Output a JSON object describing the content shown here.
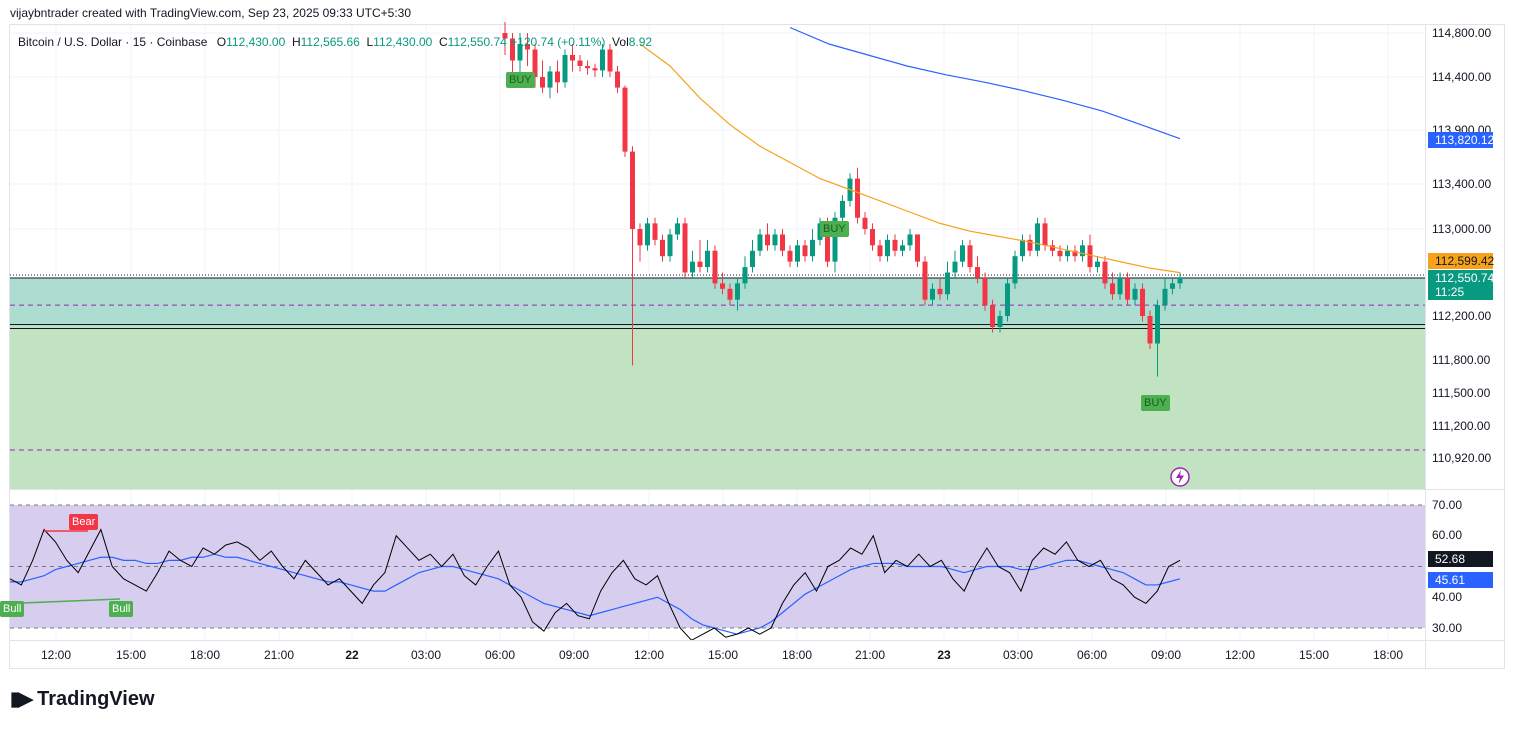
{
  "caption": "vijaybntrader created with TradingView.com, Sep 23, 2025 09:33 UTC+5:30",
  "legend": {
    "symbol": "Bitcoin / U.S. Dollar · 15 · Coinbase",
    "o_label": "O",
    "o": "112,430.00",
    "h_label": "H",
    "h": "112,565.66",
    "l_label": "L",
    "l": "112,430.00",
    "c_label": "C",
    "c": "112,550.74",
    "change": "+120.74 (+0.11%)",
    "vol_label": "Vol",
    "vol": "8.92"
  },
  "colors": {
    "up": "#089981",
    "down": "#f23645",
    "ma_fast": "#f7a21b",
    "ma_slow": "#2962ff",
    "zone_top": "#9fd6c8",
    "zone_bottom": "#bfe2bf",
    "rsi_band": "#d7cdef",
    "rsi_line": "#000000",
    "rsi_ma": "#2962ff"
  },
  "chart_data": [
    {
      "type": "candlestick",
      "price_axis_ticks": [
        "114,800.00",
        "114,400.00",
        "113,900.00",
        "113,400.00",
        "113,000.00",
        "112,200.00",
        "111,800.00",
        "111,500.00",
        "111,200.00",
        "110,920.00"
      ],
      "time_axis_ticks": [
        "12:00",
        "15:00",
        "18:00",
        "21:00",
        "22",
        "03:00",
        "06:00",
        "09:00",
        "12:00",
        "15:00",
        "18:00",
        "21:00",
        "23",
        "03:00",
        "06:00",
        "09:00",
        "12:00",
        "15:00",
        "18:00"
      ],
      "badges": {
        "ma_slow": "113,820.12",
        "ma_fast": "112,599.42",
        "last_price": "112,550.74",
        "countdown": "11:25"
      },
      "signals": [
        "BUY",
        "BUY",
        "BUY"
      ],
      "zone": {
        "top": 112550,
        "mid": 112105,
        "bottom": 110800
      },
      "dashed_levels": [
        112300,
        110990
      ],
      "candles": [
        [
          114800,
          114750,
          114900,
          114600
        ],
        [
          114750,
          114550,
          114800,
          114400
        ],
        [
          114550,
          114700,
          114800,
          114350
        ],
        [
          114700,
          114650,
          114800,
          114500
        ],
        [
          114650,
          114400,
          114700,
          114300
        ],
        [
          114400,
          114300,
          114550,
          114250
        ],
        [
          114300,
          114450,
          114500,
          114200
        ],
        [
          114450,
          114350,
          114550,
          114250
        ],
        [
          114350,
          114600,
          114650,
          114300
        ],
        [
          114600,
          114550,
          114700,
          114450
        ],
        [
          114550,
          114500,
          114600,
          114450
        ],
        [
          114500,
          114480,
          114550,
          114420
        ],
        [
          114480,
          114460,
          114520,
          114400
        ],
        [
          114460,
          114650,
          114700,
          114400
        ],
        [
          114650,
          114450,
          114700,
          114400
        ],
        [
          114450,
          114300,
          114500,
          114250
        ],
        [
          114300,
          113700,
          114320,
          113650
        ],
        [
          113700,
          113000,
          113750,
          111750
        ],
        [
          113000,
          112850,
          113050,
          112700
        ],
        [
          112850,
          113050,
          113100,
          112800
        ],
        [
          113050,
          112900,
          113100,
          112850
        ],
        [
          112900,
          112750,
          112950,
          112700
        ],
        [
          112750,
          112950,
          113000,
          112700
        ],
        [
          112950,
          113050,
          113100,
          112900
        ],
        [
          113050,
          112600,
          113100,
          112550
        ],
        [
          112600,
          112700,
          112800,
          112550
        ],
        [
          112700,
          112650,
          112900,
          112600
        ],
        [
          112650,
          112800,
          112900,
          112600
        ],
        [
          112800,
          112500,
          112850,
          112450
        ],
        [
          112500,
          112450,
          112600,
          112400
        ],
        [
          112450,
          112350,
          112500,
          112300
        ],
        [
          112350,
          112500,
          112550,
          112250
        ],
        [
          112500,
          112650,
          112750,
          112450
        ],
        [
          112650,
          112800,
          112900,
          112600
        ],
        [
          112800,
          112950,
          113000,
          112750
        ],
        [
          112950,
          112850,
          113050,
          112800
        ],
        [
          112850,
          112950,
          113000,
          112800
        ],
        [
          112950,
          112800,
          113000,
          112750
        ],
        [
          112800,
          112700,
          112850,
          112650
        ],
        [
          112700,
          112850,
          112900,
          112650
        ],
        [
          112850,
          112750,
          112900,
          112700
        ],
        [
          112750,
          112900,
          113000,
          112700
        ],
        [
          112900,
          113050,
          113100,
          112850
        ],
        [
          113050,
          112700,
          113100,
          112650
        ],
        [
          112700,
          113100,
          113150,
          112600
        ],
        [
          113100,
          113250,
          113300,
          113000
        ],
        [
          113250,
          113450,
          113500,
          113200
        ],
        [
          113450,
          113100,
          113550,
          113050
        ],
        [
          113100,
          113000,
          113150,
          112950
        ],
        [
          113000,
          112850,
          113050,
          112800
        ],
        [
          112850,
          112750,
          112900,
          112700
        ],
        [
          112750,
          112900,
          112950,
          112700
        ],
        [
          112900,
          112800,
          112950,
          112750
        ],
        [
          112800,
          112850,
          112900,
          112750
        ],
        [
          112850,
          112950,
          113000,
          112800
        ],
        [
          112950,
          112700,
          112950,
          112650
        ],
        [
          112700,
          112350,
          112750,
          112300
        ],
        [
          112350,
          112450,
          112500,
          112300
        ],
        [
          112450,
          112400,
          112550,
          112350
        ],
        [
          112400,
          112600,
          112700,
          112350
        ],
        [
          112600,
          112700,
          112800,
          112550
        ],
        [
          112700,
          112850,
          112900,
          112650
        ],
        [
          112850,
          112650,
          112900,
          112600
        ],
        [
          112650,
          112550,
          112750,
          112500
        ],
        [
          112550,
          112300,
          112600,
          112250
        ],
        [
          112300,
          112100,
          112350,
          112050
        ],
        [
          112100,
          112200,
          112250,
          112050
        ],
        [
          112200,
          112500,
          112550,
          112150
        ],
        [
          112500,
          112750,
          112800,
          112450
        ],
        [
          112750,
          112900,
          112950,
          112700
        ],
        [
          112900,
          112800,
          112950,
          112750
        ],
        [
          112800,
          113050,
          113100,
          112750
        ],
        [
          113050,
          112850,
          113100,
          112800
        ],
        [
          112850,
          112800,
          112900,
          112750
        ],
        [
          112800,
          112750,
          112850,
          112700
        ],
        [
          112750,
          112800,
          112850,
          112700
        ],
        [
          112800,
          112750,
          112850,
          112700
        ],
        [
          112750,
          112850,
          112900,
          112700
        ],
        [
          112850,
          112650,
          112950,
          112600
        ],
        [
          112650,
          112700,
          112750,
          112600
        ],
        [
          112700,
          112500,
          112750,
          112450
        ],
        [
          112500,
          112400,
          112600,
          112350
        ],
        [
          112400,
          112550,
          112600,
          112350
        ],
        [
          112550,
          112350,
          112600,
          112300
        ],
        [
          112350,
          112450,
          112500,
          112300
        ],
        [
          112450,
          112200,
          112500,
          112150
        ],
        [
          112200,
          111950,
          112250,
          111900
        ],
        [
          111950,
          112300,
          112350,
          111650
        ],
        [
          112300,
          112450,
          112550,
          112250
        ],
        [
          112450,
          112500,
          112550,
          112400
        ],
        [
          112500,
          112550,
          112600,
          112450
        ]
      ],
      "ma_fast": [
        114700,
        114500,
        114200,
        113950,
        113750,
        113600,
        113450,
        113350,
        113250,
        113150,
        113050,
        112980,
        112930,
        112880,
        112820,
        112760,
        112700,
        112640,
        112599
      ],
      "ma_slow": [
        114850,
        114700,
        114600,
        114500,
        114420,
        114350,
        114270,
        114180,
        114080,
        113950,
        113820
      ]
    },
    {
      "type": "line",
      "name": "",
      "axis_ticks": [
        "70.00",
        "60.00",
        "40.00",
        "30.00"
      ],
      "ylim": [
        26,
        72
      ],
      "badges": {
        "rsi": "52.68",
        "rsi_ma": "45.61"
      },
      "signals": [
        "Bear",
        "Bull",
        "Bull"
      ],
      "rsi": [
        46,
        44,
        52,
        62,
        58,
        52,
        48,
        55,
        62,
        50,
        46,
        44,
        42,
        48,
        55,
        52,
        50,
        56,
        54,
        57,
        58,
        56,
        52,
        55,
        50,
        46,
        52,
        48,
        44,
        46,
        42,
        38,
        44,
        48,
        60,
        56,
        52,
        54,
        50,
        54,
        47,
        44,
        50,
        55,
        44,
        40,
        32,
        29,
        35,
        38,
        34,
        33,
        42,
        48,
        52,
        46,
        44,
        47,
        38,
        30,
        26,
        28,
        30,
        27,
        28,
        30,
        28,
        30,
        38,
        44,
        48,
        42,
        50,
        52,
        56,
        54,
        60,
        48,
        52,
        50,
        54,
        50,
        52,
        46,
        42,
        50,
        56,
        50,
        48,
        42,
        52,
        56,
        54,
        58,
        52,
        50,
        52,
        46,
        44,
        40,
        38,
        42,
        50,
        52
      ],
      "rsi_ma": [
        45,
        45,
        46,
        47,
        49,
        50,
        51,
        52,
        53,
        53,
        52,
        52,
        51,
        51,
        52,
        52,
        53,
        53,
        54,
        53,
        53,
        52,
        51,
        50,
        49,
        48,
        47,
        46,
        45,
        45,
        44,
        43,
        42,
        42,
        44,
        46,
        48,
        49,
        50,
        50,
        49,
        48,
        47,
        46,
        44,
        42,
        40,
        38,
        37,
        36,
        35,
        34,
        35,
        36,
        37,
        38,
        39,
        40,
        38,
        36,
        33,
        31,
        30,
        29,
        28,
        29,
        30,
        32,
        35,
        38,
        41,
        43,
        45,
        47,
        49,
        50,
        51,
        51,
        51,
        50,
        50,
        50,
        50,
        49,
        48,
        49,
        50,
        50,
        50,
        49,
        49,
        50,
        51,
        52,
        52,
        51,
        50,
        49,
        48,
        46,
        44,
        44,
        45,
        46
      ]
    }
  ],
  "brand": "TradingView"
}
